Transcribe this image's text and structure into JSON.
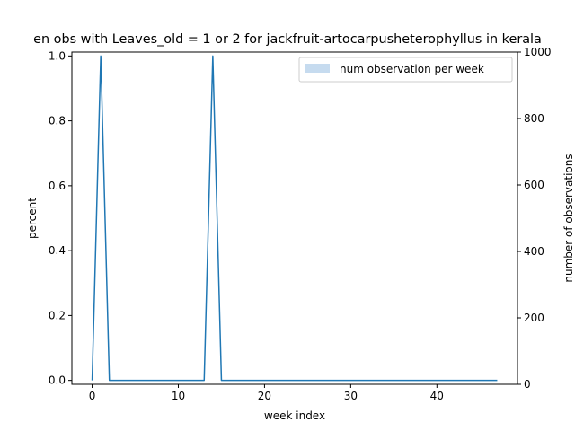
{
  "chart_data": {
    "type": "line",
    "title": "en obs with Leaves_old = 1 or 2 for jackfruit-artocarpusheterophyllus in kerala",
    "xlabel": "week index",
    "ylabel": "percent",
    "y2label": "number of observations",
    "xlim": [
      -2.35,
      49.35
    ],
    "ylim": [
      -0.012,
      1.012
    ],
    "y2lim": [
      0,
      1000
    ],
    "xticks": [
      0,
      10,
      20,
      30,
      40
    ],
    "yticks": [
      0.0,
      0.2,
      0.4,
      0.6,
      0.8,
      1.0
    ],
    "y2ticks": [
      0,
      200,
      400,
      600,
      800,
      1000
    ],
    "legend": {
      "placement": "top-right",
      "entries": [
        "num observation per week"
      ]
    },
    "series": [
      {
        "values": [
          0,
          1,
          0,
          0,
          0,
          0,
          0,
          0,
          0,
          0,
          0,
          0,
          0,
          0,
          1,
          0,
          0,
          0,
          0,
          0,
          0,
          0,
          0,
          0,
          0,
          0,
          0,
          0,
          0,
          0,
          0,
          0,
          0,
          0,
          0,
          0,
          0,
          0,
          0,
          0,
          0,
          0,
          0,
          0,
          0,
          0,
          0,
          0
        ],
        "color": "#1f77b4"
      },
      {
        "name": "num observation per week",
        "type": "bar",
        "axis": "right",
        "values": [
          0,
          1,
          0,
          0,
          0,
          0,
          0,
          0,
          0,
          0,
          0,
          0,
          0,
          0,
          1,
          0,
          0,
          0,
          0,
          0,
          0,
          0,
          0,
          0,
          0,
          0,
          0,
          0,
          0,
          0,
          0,
          0,
          0,
          0,
          0,
          0,
          0,
          0,
          0,
          0,
          0,
          0,
          0,
          0,
          0,
          0,
          0,
          0
        ],
        "color": "#c6dbef"
      }
    ],
    "grid": false
  }
}
